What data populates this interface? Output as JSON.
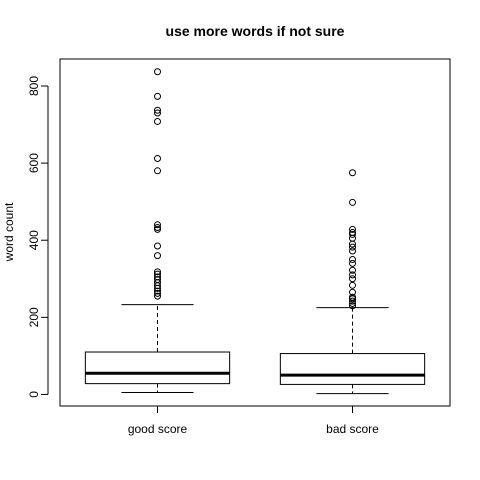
{
  "chart_data": {
    "type": "boxplot",
    "title": "use more words if not sure",
    "xlabel": "",
    "ylabel": "word count",
    "ylim": [
      -30,
      870
    ],
    "y_ticks": [
      0,
      200,
      400,
      600,
      800
    ],
    "grid": false,
    "categories": [
      "good score",
      "bad score"
    ],
    "boxes": [
      {
        "name": "good score",
        "whisker_low": 5,
        "q1": 28,
        "median": 55,
        "q3": 110,
        "whisker_high": 233,
        "outliers": [
          255,
          262,
          268,
          275,
          282,
          290,
          298,
          305,
          312,
          318,
          360,
          385,
          428,
          433,
          440,
          580,
          612,
          708,
          730,
          737,
          773,
          837
        ]
      },
      {
        "name": "bad score",
        "whisker_low": 2,
        "q1": 26,
        "median": 50,
        "q3": 106,
        "whisker_high": 225,
        "outliers": [
          230,
          236,
          242,
          248,
          252,
          265,
          283,
          300,
          310,
          322,
          340,
          350,
          372,
          382,
          390,
          405,
          415,
          420,
          428,
          498,
          575
        ]
      }
    ]
  }
}
